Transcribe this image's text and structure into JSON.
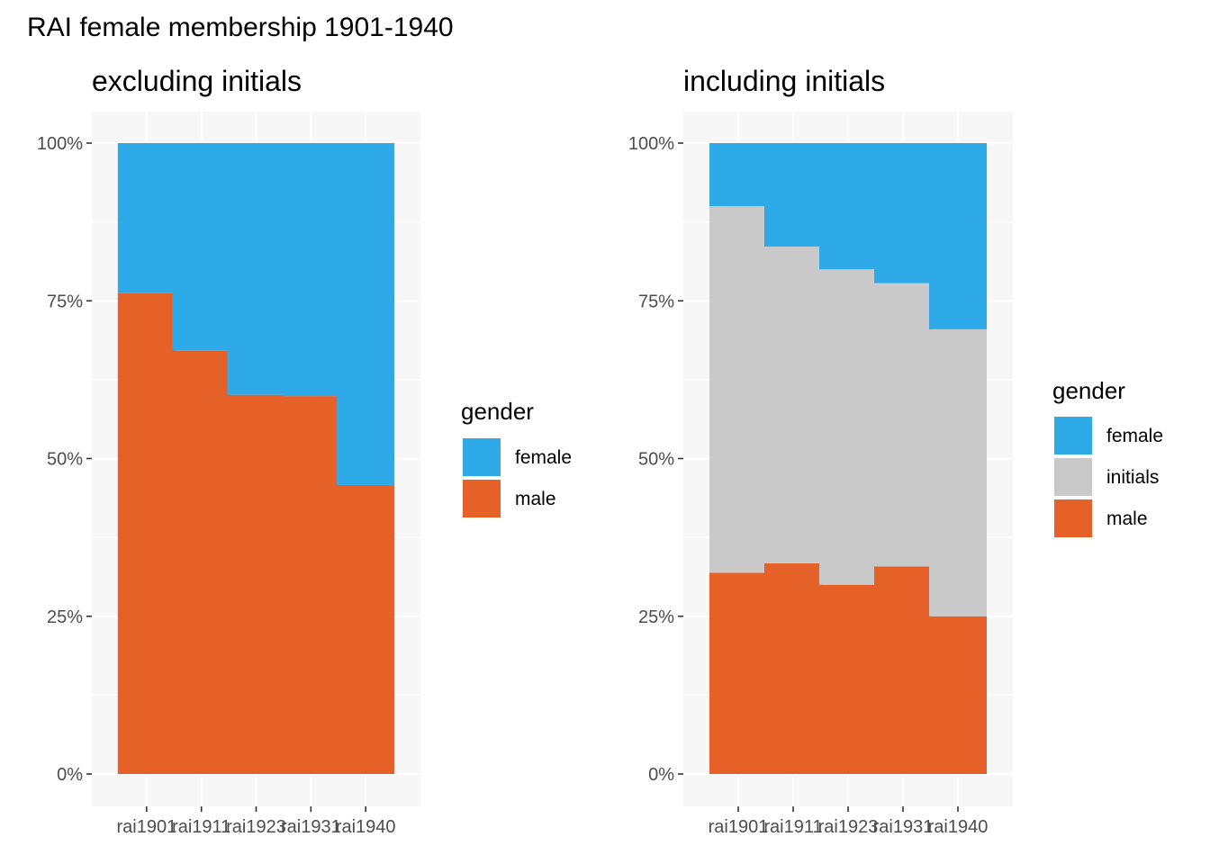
{
  "main_title": "RAI female membership 1901-1940",
  "colors": {
    "female": "#2FAAE8",
    "initials": "#C9C9C9",
    "male": "#E66128",
    "panel_bg": "#F7F7F7",
    "grid": "#FFFFFF",
    "text": "#4D4D4D"
  },
  "chart_data": [
    {
      "type": "bar",
      "stacked": true,
      "title": "excluding initials",
      "xlabel": "",
      "ylabel": "",
      "categories": [
        "rai1901",
        "rai1911",
        "rai1923",
        "rai1931",
        "rai1940"
      ],
      "ylim": [
        0,
        1
      ],
      "y_ticks": [
        "0%",
        "25%",
        "50%",
        "75%",
        "100%"
      ],
      "grid": true,
      "legend": {
        "title": "gender",
        "position": "right",
        "entries": [
          "female",
          "male"
        ]
      },
      "series": [
        {
          "name": "male",
          "values": [
            0.762,
            0.671,
            0.601,
            0.599,
            0.458
          ]
        },
        {
          "name": "female",
          "values": [
            0.238,
            0.329,
            0.399,
            0.401,
            0.542
          ]
        }
      ]
    },
    {
      "type": "bar",
      "stacked": true,
      "title": "including initials",
      "xlabel": "",
      "ylabel": "",
      "categories": [
        "rai1901",
        "rai1911",
        "rai1923",
        "rai1931",
        "rai1940"
      ],
      "ylim": [
        0,
        1
      ],
      "y_ticks": [
        "0%",
        "25%",
        "50%",
        "75%",
        "100%"
      ],
      "grid": true,
      "legend": {
        "title": "gender",
        "position": "right",
        "entries": [
          "female",
          "initials",
          "male"
        ]
      },
      "series": [
        {
          "name": "male",
          "values": [
            0.319,
            0.334,
            0.3,
            0.329,
            0.25
          ]
        },
        {
          "name": "initials",
          "values": [
            0.581,
            0.502,
            0.5,
            0.449,
            0.455
          ]
        },
        {
          "name": "female",
          "values": [
            0.1,
            0.164,
            0.2,
            0.222,
            0.295
          ]
        }
      ]
    }
  ]
}
